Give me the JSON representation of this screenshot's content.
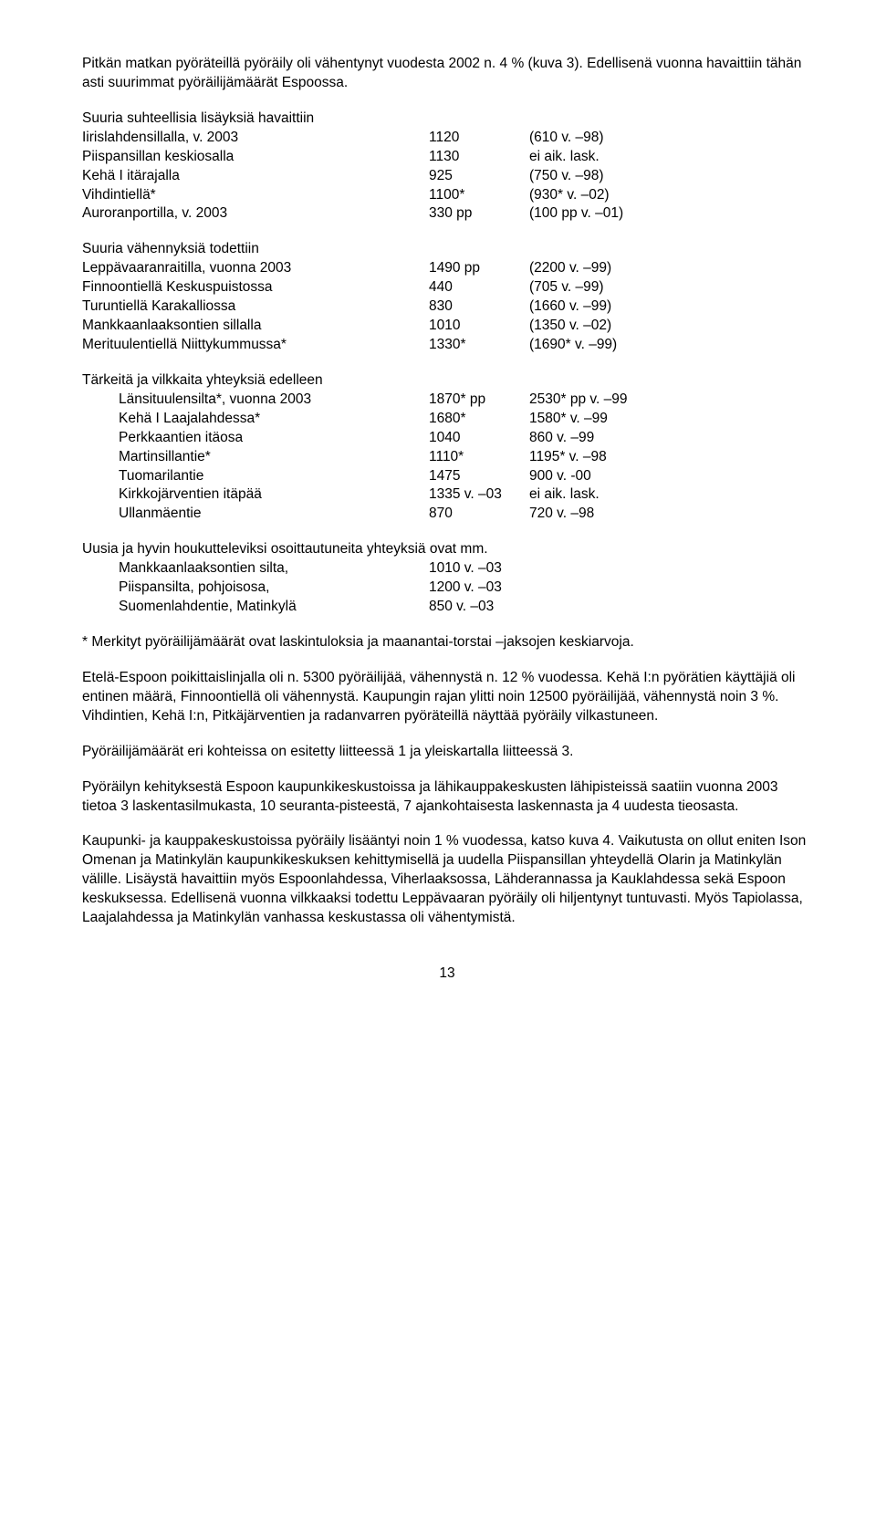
{
  "p1": "Pitkän matkan pyöräteillä pyöräily oli vähentynyt vuodesta 2002 n. 4 % (kuva 3). Edellisenä vuonna havaittiin tähän asti suurimmat pyöräilijämäärät Espoossa.",
  "t1": {
    "intro": "Suuria suhteellisia lisäyksiä havaittiin",
    "rows": [
      {
        "c1": "Iirislahdensillalla, v. 2003",
        "c2": "1120",
        "c3": "(610 v. –98)"
      },
      {
        "c1": "Piispansillan keskiosalla",
        "c2": "1130",
        "c3": "ei aik. lask."
      },
      {
        "c1": "Kehä I itärajalla",
        "c2": "925",
        "c3": "(750 v. –98)"
      },
      {
        "c1": "Vihdintiellä*",
        "c2": "1100*",
        "c3": "(930* v. –02)"
      },
      {
        "c1": "Auroranportilla, v. 2003",
        "c2": "330 pp",
        "c3": "(100 pp v. –01)"
      }
    ]
  },
  "t2": {
    "intro": "Suuria vähennyksiä todettiin",
    "rows": [
      {
        "c1": "Leppävaaranraitilla,  vuonna 2003",
        "c2": "1490 pp",
        "c3": "(2200 v. –99)"
      },
      {
        "c1": "Finnoontiellä Keskuspuistossa",
        "c2": "440",
        "c3": "(705 v. –99)"
      },
      {
        "c1": "Turuntiellä Karakalliossa",
        "c2": "830",
        "c3": "(1660 v. –99)"
      },
      {
        "c1": "Mankkaanlaaksontien sillalla",
        "c2": "1010",
        "c3": "(1350 v. –02)"
      },
      {
        "c1": "Merituulentiellä Niittykummussa*",
        "c2": "1330*",
        "c3": "(1690* v. –99)"
      }
    ]
  },
  "t3": {
    "intro": "Tärkeitä ja vilkkaita yhteyksiä edelleen",
    "rows": [
      {
        "c1": "Länsituulensilta*, vuonna 2003",
        "c2": "1870* pp",
        "c3": "2530* pp v. –99"
      },
      {
        "c1": "Kehä I Laajalahdessa*",
        "c2": "1680*",
        "c3": "1580* v. –99"
      },
      {
        "c1": "Perkkaantien itäosa",
        "c2": "1040",
        "c3": "860 v. –99"
      },
      {
        "c1": "Martinsillantie*",
        "c2": "1110*",
        "c3": "1195* v. –98"
      },
      {
        "c1": "Tuomarilantie",
        "c2": "1475",
        "c3": "900 v. -00"
      },
      {
        "c1": "Kirkkojärventien itäpää",
        "c2": "1335 v. –03",
        "c3": "ei aik. lask."
      },
      {
        "c1": "Ullanmäentie",
        "c2": "870",
        "c3": "720 v. –98"
      }
    ]
  },
  "t4": {
    "intro": "Uusia ja hyvin houkutteleviksi osoittautuneita yhteyksiä ovat mm.",
    "rows": [
      {
        "c1": "Mankkaanlaaksontien silta,",
        "c2": "1010 v. –03"
      },
      {
        "c1": "Piispansilta, pohjoisosa,",
        "c2": "1200 v. –03"
      },
      {
        "c1": "Suomenlahdentie, Matinkylä",
        "c2": "850 v. –03"
      }
    ]
  },
  "p2": "* Merkityt pyöräilijämäärät ovat laskintuloksia ja maanantai-torstai –jaksojen keskiarvoja.",
  "p3": "Etelä-Espoon poikittaislinjalla oli n. 5300 pyöräilijää, vähennystä n. 12 % vuodessa. Kehä I:n pyörätien käyttäjiä oli entinen määrä, Finnoontiellä oli vähennystä. Kaupungin rajan ylitti noin 12500 pyöräilijää, vähennystä noin 3 %. Vihdintien, Kehä I:n, Pitkäjärventien ja radanvarren pyöräteillä näyttää pyöräily vilkastuneen.",
  "p4": "Pyöräilijämäärät eri kohteissa on esitetty liitteessä 1 ja yleiskartalla liitteessä 3.",
  "p5": "Pyöräilyn kehityksestä Espoon kaupunkikeskustoissa ja lähikauppakeskusten lähipisteissä saatiin vuonna 2003 tietoa 3 laskentasilmukasta, 10 seuranta-pisteestä, 7 ajankohtaisesta laskennasta ja 4 uudesta tieosasta.",
  "p6": "Kaupunki- ja kauppakeskustoissa pyöräily lisääntyi noin 1 % vuodessa, katso kuva 4. Vaikutusta on ollut eniten Ison Omenan ja Matinkylän kaupunkikeskuksen kehittymisellä ja uudella Piispansillan yhteydellä Olarin ja Matinkylän välille. Lisäystä havaittiin myös Espoonlahdessa, Viherlaaksossa, Lähderannassa ja Kauklahdessa sekä Espoon keskuksessa. Edellisenä vuonna vilkkaaksi todettu Leppävaaran pyöräily oli hiljentynyt tuntuvasti. Myös Tapiolassa, Laajalahdessa ja Matinkylän vanhassa keskustassa oli vähentymistä.",
  "pagenum": "13"
}
